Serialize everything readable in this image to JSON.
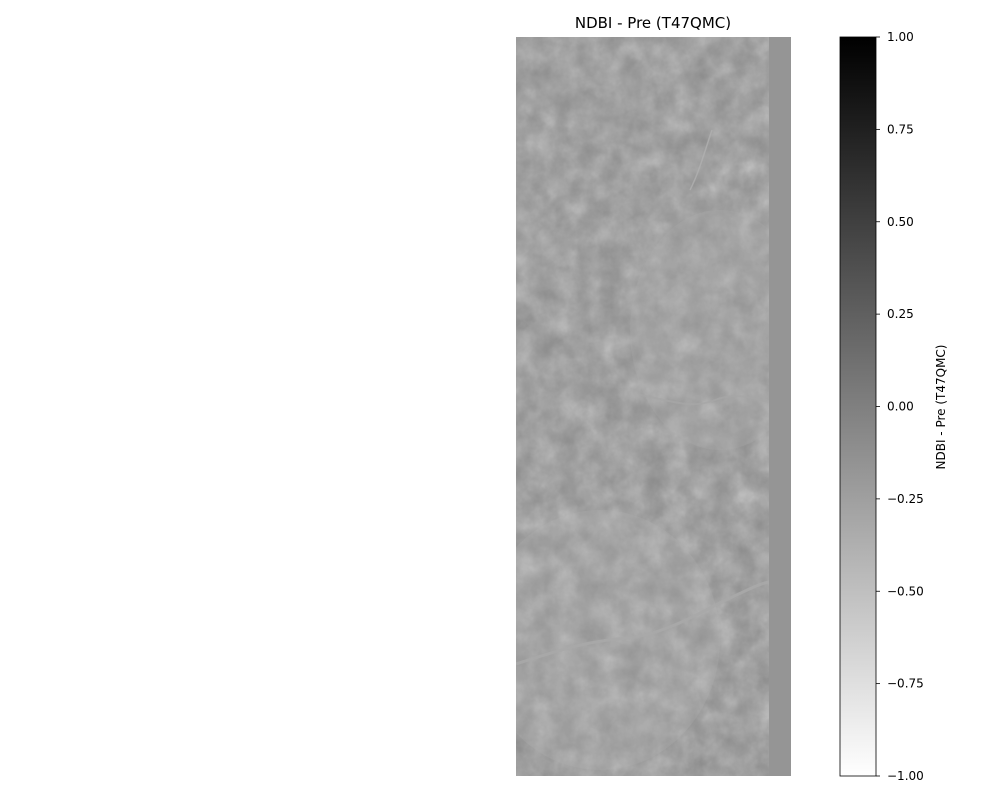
{
  "chart_data": {
    "type": "heatmap",
    "title": "NDBI - Pre (T47QMC)",
    "colorbar": {
      "label": "NDBI - Pre (T47QMC)",
      "colormap": "Greys",
      "vmin": -1.0,
      "vmax": 1.0,
      "ticks": [
        1.0,
        0.75,
        0.5,
        0.25,
        0.0,
        -0.25,
        -0.5,
        -0.75,
        -1.0
      ],
      "tick_labels": [
        "1.00",
        "0.75",
        "0.50",
        "0.25",
        "0.00",
        "−0.25",
        "−0.50",
        "−0.75",
        "−1.00"
      ]
    },
    "image": {
      "description": "grayscale satellite NDBI raster, values mostly near -0.3 to 0.1, with a no-data strip on the right edge",
      "typical_value": -0.1,
      "nodata_strip_value": 0.0
    },
    "axes_visible": false
  },
  "colors": {
    "background": "#ffffff",
    "image_base": "#8a8a8a",
    "nodata_strip": "#959595",
    "river": "#a8a8a8"
  }
}
